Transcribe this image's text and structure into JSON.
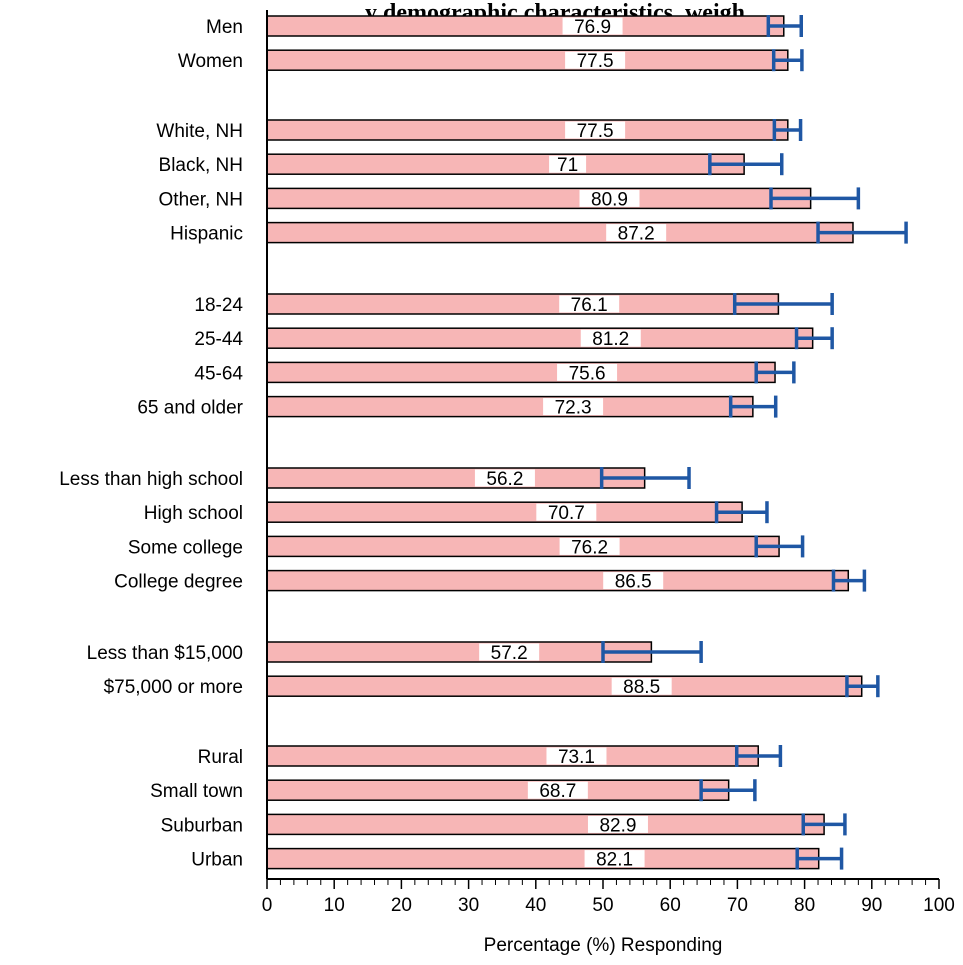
{
  "colors": {
    "bar_fill": "#f7b6b6",
    "bar_stroke": "#000000",
    "error_bar": "#1f57a4",
    "axis": "#000000",
    "label_bg": "#ffffff"
  },
  "chart_data": {
    "type": "bar",
    "orientation": "horizontal",
    "title": "y demographic characteristics, weigh",
    "xlabel": "Percentage (%) Responding",
    "ylabel": "",
    "xlim": [
      0,
      100
    ],
    "x_ticks": [
      0,
      10,
      20,
      30,
      40,
      50,
      60,
      70,
      80,
      90,
      100
    ],
    "grid": false,
    "categories": [
      "Men",
      "Women",
      "White, NH",
      "Black, NH",
      "Other, NH",
      "Hispanic",
      "18-24",
      "25-44",
      "45-64",
      "65 and older",
      "Less than high school",
      "High school",
      "Some college",
      "College degree",
      "Less than $15,000",
      "$75,000 or more",
      "Rural",
      "Small town",
      "Suburban",
      "Urban"
    ],
    "value_labels": [
      "76.9",
      "77.5",
      "77.5",
      "71",
      "80.9",
      "87.2",
      "76.1",
      "81.2",
      "75.6",
      "72.3",
      "56.2",
      "70.7",
      "76.2",
      "86.5",
      "57.2",
      "88.5",
      "73.1",
      "68.7",
      "82.9",
      "82.1"
    ],
    "values": [
      76.9,
      77.5,
      77.5,
      71,
      80.9,
      87.2,
      76.1,
      81.2,
      75.6,
      72.3,
      56.2,
      70.7,
      76.2,
      86.5,
      57.2,
      88.5,
      73.1,
      68.7,
      82.9,
      82.1
    ],
    "error_low": [
      74.6,
      75.4,
      75.5,
      65.9,
      75.0,
      82.0,
      69.6,
      78.8,
      72.8,
      69.0,
      49.8,
      66.9,
      72.8,
      84.3,
      50.0,
      86.3,
      69.9,
      64.6,
      79.8,
      78.9
    ],
    "error_high": [
      79.5,
      79.6,
      79.4,
      76.6,
      88.0,
      95.1,
      84.1,
      84.1,
      78.4,
      75.7,
      62.8,
      74.4,
      79.7,
      88.9,
      64.6,
      90.9,
      76.4,
      72.6,
      86.0,
      85.5
    ],
    "groups": [
      {
        "start": 0,
        "count": 2
      },
      {
        "start": 2,
        "count": 4
      },
      {
        "start": 6,
        "count": 4
      },
      {
        "start": 10,
        "count": 4
      },
      {
        "start": 14,
        "count": 2
      },
      {
        "start": 16,
        "count": 4
      }
    ]
  }
}
